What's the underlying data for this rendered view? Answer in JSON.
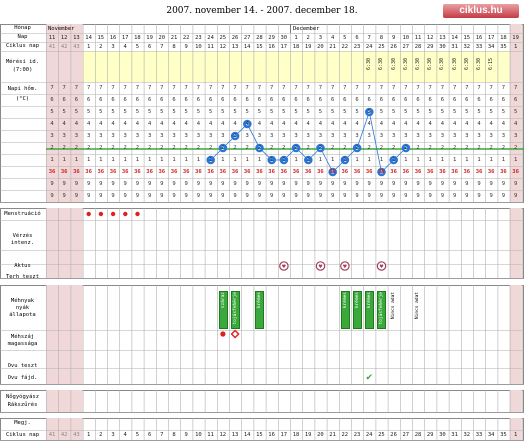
{
  "header": {
    "title": "2007. november 14. - 2007. december 18.",
    "logo": "ciklus.hu"
  },
  "row_labels": {
    "month": "Hónap",
    "day": "Nap",
    "cycle_day": "Ciklus nap",
    "measure_time_1": "Mérési id.",
    "measure_time_2": "(7:00)",
    "temp_1": "Napi hőm.",
    "temp_2": "(°C)",
    "menstruation": "Menstruáció",
    "bleeding_1": "Vérzés",
    "bleeding_2": "intenz.",
    "intercourse": "Aktus",
    "pregnancy_test": "Terh teszt",
    "mucus_1": "Méhnyak",
    "mucus_2": "nyák",
    "mucus_3": "állapota",
    "cervix_1": "Méhszáj",
    "cervix_2": "magassága",
    "ovu_test": "Ovu teszt",
    "ovu_pain": "Ovu fájd.",
    "relax_1": "Nőgyógyász",
    "relax_2": "Rákszűrés",
    "notes": "Megj.",
    "cycle_day_bottom": "Ciklus nap"
  },
  "months": {
    "nov": "November",
    "dec": "December"
  },
  "days": [
    "11",
    "12",
    "13",
    "14",
    "15",
    "16",
    "17",
    "18",
    "19",
    "20",
    "21",
    "22",
    "23",
    "24",
    "25",
    "26",
    "27",
    "28",
    "29",
    "30",
    "1",
    "2",
    "3",
    "4",
    "5",
    "6",
    "7",
    "8",
    "9",
    "10",
    "11",
    "12",
    "13",
    "14",
    "15",
    "16",
    "17",
    "18",
    "19"
  ],
  "cycle_days": [
    "41",
    "42",
    "43",
    "1",
    "2",
    "3",
    "4",
    "5",
    "6",
    "7",
    "8",
    "9",
    "10",
    "11",
    "12",
    "13",
    "14",
    "15",
    "16",
    "17",
    "18",
    "19",
    "20",
    "21",
    "22",
    "23",
    "24",
    "25",
    "26",
    "27",
    "28",
    "29",
    "30",
    "31",
    "32",
    "33",
    "34",
    "35",
    "1"
  ],
  "measure_times": {
    "26": "6:30",
    "27": "6:30",
    "28": "6:30",
    "29": "6:30",
    "30": "6:30",
    "31": "6:30",
    "32": "6:30",
    "33": "6:30",
    "34": "6:30",
    "35": "6:30",
    "36": "6:15"
  },
  "temp_scale_labels": [
    "7",
    "6",
    "5",
    "4",
    "3",
    "2",
    "1",
    "36",
    "9",
    "9"
  ],
  "temperature_points": [
    {
      "day": "24",
      "value": "36.1"
    },
    {
      "day": "25",
      "value": "36.2"
    },
    {
      "day": "26",
      "value": "36.3"
    },
    {
      "day": "27",
      "value": "36.4"
    },
    {
      "day": "28",
      "value": "36.2"
    },
    {
      "day": "29",
      "value": "36.1"
    },
    {
      "day": "30",
      "value": "36.1"
    },
    {
      "day": "1",
      "value": "36.2"
    },
    {
      "day": "2",
      "value": "36.1"
    },
    {
      "day": "3",
      "value": "36.2"
    },
    {
      "day": "4",
      "value": "36.0"
    },
    {
      "day": "5",
      "value": "36.1"
    },
    {
      "day": "6",
      "value": "36.2"
    },
    {
      "day": "7",
      "value": "36.5"
    },
    {
      "day": "8",
      "value": "36.0"
    },
    {
      "day": "9",
      "value": "36.1"
    },
    {
      "day": "10",
      "value": "36.2"
    }
  ],
  "menstruation_days": [
    "14",
    "15",
    "16",
    "17",
    "18"
  ],
  "intercourse_days": [
    "30",
    "3",
    "5",
    "8"
  ],
  "mucus": [
    {
      "day": "25",
      "text": "száraz"
    },
    {
      "day": "26",
      "text": "tojásfehérje"
    },
    {
      "day": "28",
      "text": "krémes"
    },
    {
      "day": "5",
      "text": "krémes"
    },
    {
      "day": "6",
      "text": "krémes"
    },
    {
      "day": "7",
      "text": "krémes"
    },
    {
      "day": "8",
      "text": "tojásfehérje"
    },
    {
      "day": "9",
      "text": "Nincs adat"
    },
    {
      "day": "11",
      "text": "Nincs adat"
    }
  ],
  "cervix_marks": [
    {
      "day": "25",
      "symbol": "●"
    },
    {
      "day": "26",
      "symbol": "◇"
    }
  ],
  "ovu_pain_mark": {
    "day": "7",
    "symbol": "✔"
  },
  "colors": {
    "grid": "#b0b0b0",
    "highlight": "#ffffc8",
    "pink": "#f0d8d8",
    "red": "#e02020",
    "blue": "#2a76d8",
    "green": "#3aa83a",
    "cover_line": "#3aa83a"
  }
}
